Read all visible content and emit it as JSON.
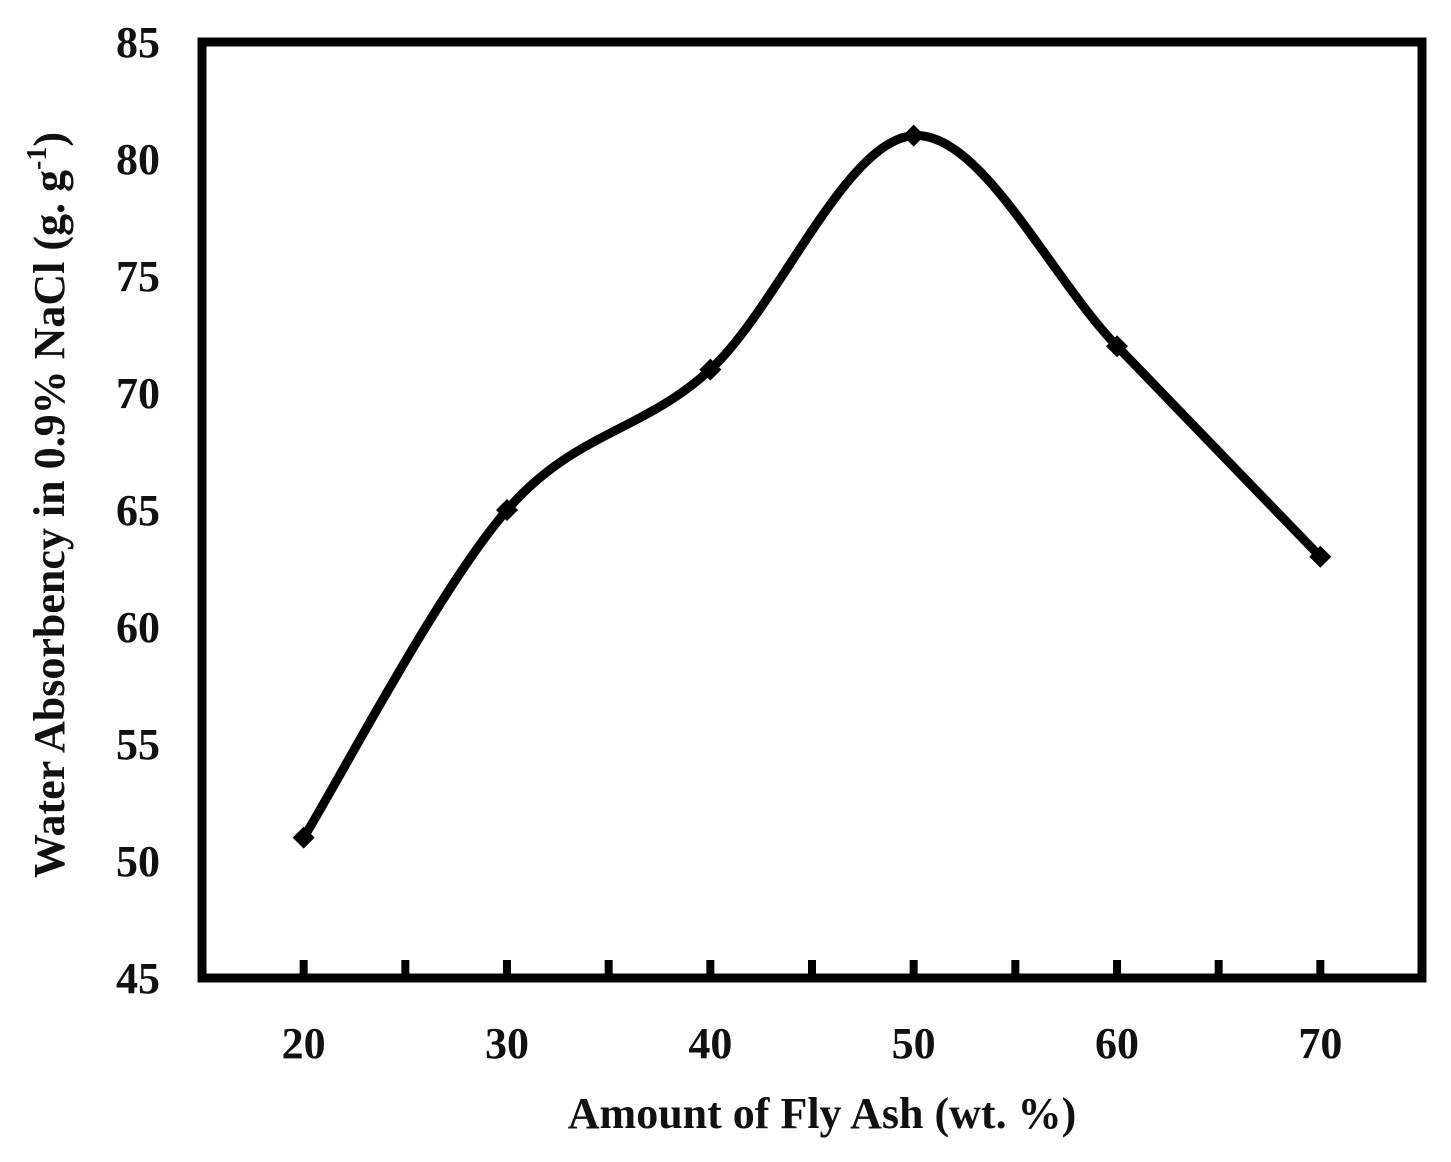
{
  "chart_data": {
    "type": "line",
    "xlabel": "Amount of  Fly Ash (wt. %)",
    "ylabel_main": "Water Absorbency in 0.9% NaCl (g. g",
    "ylabel_sup": "-1",
    "ylabel_end": ")",
    "x": [
      20,
      30,
      40,
      50,
      60,
      70
    ],
    "y": [
      51,
      65,
      71,
      81,
      72,
      63
    ],
    "xlim": [
      15,
      75
    ],
    "ylim": [
      45,
      85
    ],
    "x_ticks": [
      "20",
      "30",
      "40",
      "50",
      "60",
      "70"
    ],
    "y_ticks": [
      "45",
      "50",
      "55",
      "60",
      "65",
      "70",
      "75",
      "80",
      "85"
    ],
    "x_minor_ticks": [
      25,
      35,
      45,
      55,
      65
    ],
    "line_color": "#000000",
    "marker": "diamond",
    "smooth": true,
    "grid": false,
    "legend": "none"
  }
}
